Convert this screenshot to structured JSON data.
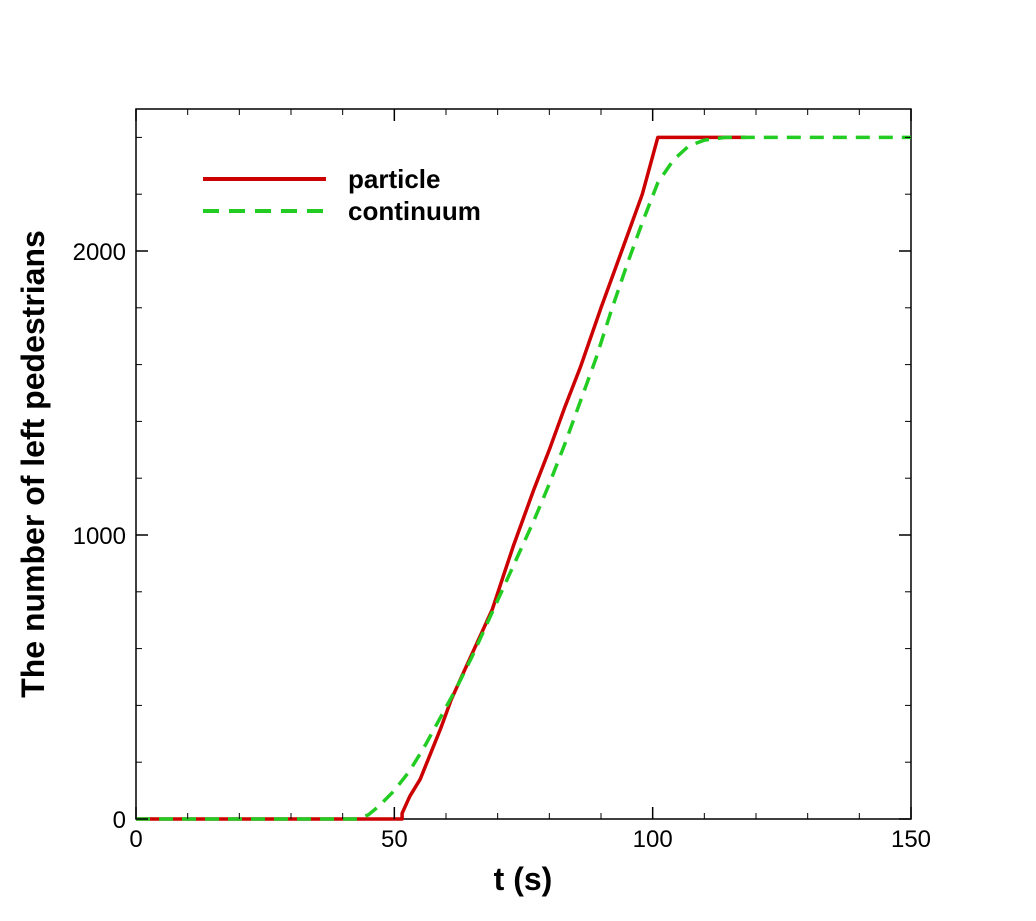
{
  "chart_data": {
    "type": "line",
    "xlabel": "t (s)",
    "ylabel": "The number of left pedestrians",
    "xlim": [
      0,
      150
    ],
    "ylim": [
      0,
      2500
    ],
    "xticks": [
      0,
      50,
      100,
      150
    ],
    "xtick_labels": [
      "0",
      "50",
      "100",
      "150"
    ],
    "yticks": [
      0,
      1000,
      2000
    ],
    "ytick_labels": [
      "0",
      "1000",
      "2000"
    ],
    "grid": false,
    "legend_position": "top-left",
    "series": [
      {
        "name": "particle",
        "style": "solid",
        "color": "#cc0000",
        "points": [
          [
            0,
            0
          ],
          [
            51.5,
            0
          ],
          [
            51.5,
            20
          ],
          [
            53,
            80
          ],
          [
            55,
            140
          ],
          [
            57,
            230
          ],
          [
            59,
            320
          ],
          [
            61,
            420
          ],
          [
            63,
            500
          ],
          [
            65,
            580
          ],
          [
            67,
            660
          ],
          [
            69,
            740
          ],
          [
            71,
            850
          ],
          [
            73,
            960
          ],
          [
            75,
            1060
          ],
          [
            77,
            1160
          ],
          [
            80,
            1300
          ],
          [
            83,
            1450
          ],
          [
            86,
            1590
          ],
          [
            90,
            1800
          ],
          [
            94,
            2000
          ],
          [
            98,
            2200
          ],
          [
            101,
            2400
          ],
          [
            118,
            2400
          ]
        ]
      },
      {
        "name": "continuum",
        "style": "dashed",
        "color": "#22cc22",
        "points": [
          [
            0,
            0
          ],
          [
            43,
            0
          ],
          [
            45,
            15
          ],
          [
            47,
            45
          ],
          [
            50,
            100
          ],
          [
            53,
            170
          ],
          [
            56,
            260
          ],
          [
            59,
            360
          ],
          [
            62,
            460
          ],
          [
            65,
            570
          ],
          [
            68,
            690
          ],
          [
            71,
            810
          ],
          [
            74,
            930
          ],
          [
            77,
            1050
          ],
          [
            80,
            1180
          ],
          [
            83,
            1320
          ],
          [
            86,
            1470
          ],
          [
            89,
            1620
          ],
          [
            92,
            1790
          ],
          [
            95,
            1950
          ],
          [
            98,
            2100
          ],
          [
            101,
            2240
          ],
          [
            104,
            2320
          ],
          [
            107,
            2370
          ],
          [
            110,
            2390
          ],
          [
            114,
            2400
          ],
          [
            150,
            2400
          ]
        ]
      }
    ]
  }
}
